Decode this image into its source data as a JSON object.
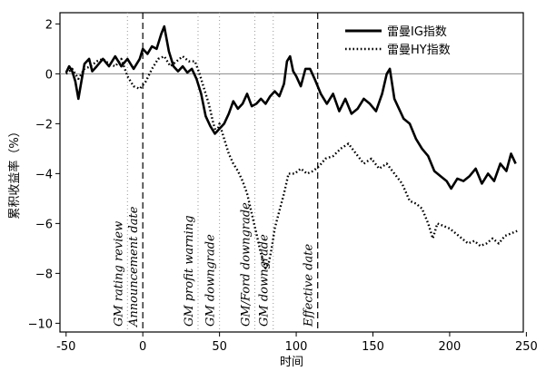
{
  "chart_data": {
    "type": "line",
    "xlabel": "时间",
    "ylabel": "累积收益率（%）",
    "xlim": [
      -54,
      248
    ],
    "ylim": [
      -10.35,
      2.45
    ],
    "xticks": [
      -50,
      0,
      50,
      100,
      150,
      200,
      250
    ],
    "yticks": [
      2,
      0,
      -2,
      -4,
      -6,
      -8,
      -10
    ],
    "legend_position": "top-right",
    "grid": false,
    "zero_line": 0,
    "series": [
      {
        "name": "雷曼IG指数",
        "style": "solid",
        "color": "#000000",
        "points": [
          [
            -50,
            0.05
          ],
          [
            -48,
            0.3
          ],
          [
            -46,
            0.1
          ],
          [
            -44,
            -0.3
          ],
          [
            -42,
            -1.0
          ],
          [
            -40,
            -0.3
          ],
          [
            -38,
            0.4
          ],
          [
            -35,
            0.6
          ],
          [
            -33,
            0.1
          ],
          [
            -30,
            0.3
          ],
          [
            -26,
            0.6
          ],
          [
            -22,
            0.3
          ],
          [
            -18,
            0.7
          ],
          [
            -14,
            0.3
          ],
          [
            -10,
            0.6
          ],
          [
            -6,
            0.2
          ],
          [
            -2,
            0.6
          ],
          [
            0,
            1.0
          ],
          [
            3,
            0.8
          ],
          [
            6,
            1.1
          ],
          [
            9,
            1.0
          ],
          [
            12,
            1.6
          ],
          [
            14,
            1.9
          ],
          [
            17,
            0.9
          ],
          [
            20,
            0.3
          ],
          [
            23,
            0.1
          ],
          [
            26,
            0.3
          ],
          [
            29,
            0.05
          ],
          [
            32,
            0.2
          ],
          [
            35,
            -0.2
          ],
          [
            38,
            -0.8
          ],
          [
            41,
            -1.7
          ],
          [
            44,
            -2.1
          ],
          [
            47,
            -2.4
          ],
          [
            50,
            -2.2
          ],
          [
            53,
            -2.0
          ],
          [
            56,
            -1.6
          ],
          [
            59,
            -1.1
          ],
          [
            62,
            -1.4
          ],
          [
            65,
            -1.2
          ],
          [
            68,
            -0.8
          ],
          [
            71,
            -1.3
          ],
          [
            74,
            -1.2
          ],
          [
            77,
            -1.0
          ],
          [
            80,
            -1.2
          ],
          [
            83,
            -0.9
          ],
          [
            86,
            -0.7
          ],
          [
            89,
            -0.9
          ],
          [
            92,
            -0.4
          ],
          [
            94,
            0.5
          ],
          [
            96,
            0.7
          ],
          [
            98,
            0.1
          ],
          [
            100,
            -0.1
          ],
          [
            103,
            -0.5
          ],
          [
            106,
            0.2
          ],
          [
            109,
            0.2
          ],
          [
            112,
            -0.2
          ],
          [
            116,
            -0.8
          ],
          [
            120,
            -1.2
          ],
          [
            124,
            -0.8
          ],
          [
            128,
            -1.5
          ],
          [
            132,
            -1.0
          ],
          [
            136,
            -1.6
          ],
          [
            140,
            -1.4
          ],
          [
            144,
            -1.0
          ],
          [
            148,
            -1.2
          ],
          [
            152,
            -1.5
          ],
          [
            156,
            -0.8
          ],
          [
            159,
            0.0
          ],
          [
            161,
            0.2
          ],
          [
            164,
            -1.0
          ],
          [
            167,
            -1.4
          ],
          [
            170,
            -1.8
          ],
          [
            174,
            -2.0
          ],
          [
            178,
            -2.6
          ],
          [
            182,
            -3.0
          ],
          [
            186,
            -3.3
          ],
          [
            190,
            -3.9
          ],
          [
            194,
            -4.1
          ],
          [
            198,
            -4.3
          ],
          [
            201,
            -4.6
          ],
          [
            205,
            -4.2
          ],
          [
            209,
            -4.3
          ],
          [
            213,
            -4.1
          ],
          [
            217,
            -3.8
          ],
          [
            221,
            -4.4
          ],
          [
            225,
            -4.0
          ],
          [
            229,
            -4.3
          ],
          [
            233,
            -3.6
          ],
          [
            237,
            -3.9
          ],
          [
            240,
            -3.2
          ],
          [
            243,
            -3.6
          ]
        ]
      },
      {
        "name": "雷曼HY指数",
        "style": "dotted",
        "color": "#000000",
        "points": [
          [
            -50,
            0.0
          ],
          [
            -46,
            0.2
          ],
          [
            -42,
            -0.2
          ],
          [
            -38,
            0.2
          ],
          [
            -34,
            0.3
          ],
          [
            -30,
            0.5
          ],
          [
            -26,
            0.6
          ],
          [
            -22,
            0.4
          ],
          [
            -18,
            0.3
          ],
          [
            -14,
            0.6
          ],
          [
            -10,
            -0.1
          ],
          [
            -6,
            -0.5
          ],
          [
            -2,
            -0.6
          ],
          [
            2,
            -0.3
          ],
          [
            6,
            0.2
          ],
          [
            10,
            0.6
          ],
          [
            14,
            0.7
          ],
          [
            18,
            0.3
          ],
          [
            22,
            0.5
          ],
          [
            26,
            0.7
          ],
          [
            30,
            0.5
          ],
          [
            34,
            0.5
          ],
          [
            37,
            0.0
          ],
          [
            40,
            -0.6
          ],
          [
            43,
            -1.2
          ],
          [
            46,
            -2.0
          ],
          [
            48,
            -2.4
          ],
          [
            50,
            -2.0
          ],
          [
            53,
            -2.6
          ],
          [
            56,
            -3.2
          ],
          [
            59,
            -3.6
          ],
          [
            62,
            -3.9
          ],
          [
            65,
            -4.3
          ],
          [
            68,
            -4.8
          ],
          [
            71,
            -5.6
          ],
          [
            74,
            -6.4
          ],
          [
            77,
            -7.2
          ],
          [
            80,
            -7.8
          ],
          [
            82,
            -7.6
          ],
          [
            84,
            -7.0
          ],
          [
            86,
            -6.2
          ],
          [
            89,
            -5.5
          ],
          [
            92,
            -4.8
          ],
          [
            95,
            -4.0
          ],
          [
            99,
            -4.0
          ],
          [
            103,
            -3.8
          ],
          [
            107,
            -4.0
          ],
          [
            111,
            -3.9
          ],
          [
            115,
            -3.7
          ],
          [
            119,
            -3.4
          ],
          [
            124,
            -3.3
          ],
          [
            129,
            -3.0
          ],
          [
            134,
            -2.8
          ],
          [
            139,
            -3.2
          ],
          [
            144,
            -3.6
          ],
          [
            149,
            -3.4
          ],
          [
            154,
            -3.8
          ],
          [
            159,
            -3.6
          ],
          [
            164,
            -4.0
          ],
          [
            169,
            -4.4
          ],
          [
            174,
            -5.1
          ],
          [
            178,
            -5.2
          ],
          [
            182,
            -5.4
          ],
          [
            186,
            -6.0
          ],
          [
            189,
            -6.6
          ],
          [
            192,
            -6.0
          ],
          [
            196,
            -6.1
          ],
          [
            200,
            -6.2
          ],
          [
            204,
            -6.4
          ],
          [
            208,
            -6.6
          ],
          [
            212,
            -6.8
          ],
          [
            216,
            -6.7
          ],
          [
            220,
            -6.9
          ],
          [
            224,
            -6.8
          ],
          [
            228,
            -6.6
          ],
          [
            232,
            -6.8
          ],
          [
            236,
            -6.5
          ],
          [
            240,
            -6.4
          ],
          [
            244,
            -6.3
          ]
        ]
      }
    ],
    "event_lines": [
      {
        "x": -10,
        "style": "dotted",
        "label": "GM rating review"
      },
      {
        "x": 0,
        "style": "dashed",
        "label": "Announcement date"
      },
      {
        "x": 36,
        "style": "dotted",
        "label": "GM profit warning"
      },
      {
        "x": 50,
        "style": "dotted",
        "label": "GM downgrade"
      },
      {
        "x": 73,
        "style": "dotted",
        "label": "GM/Ford downgrade"
      },
      {
        "x": 85,
        "style": "dotted",
        "label": "GM downgrade"
      },
      {
        "x": 114,
        "style": "dashed",
        "label": "Effective date"
      }
    ]
  }
}
